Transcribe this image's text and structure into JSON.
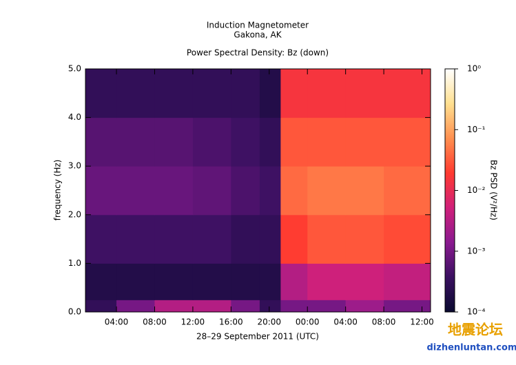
{
  "chart_data": {
    "type": "heatmap",
    "title": "Induction Magnetometer",
    "subtitle": "Gakona, AK",
    "plot_title": "Power Spectral Density: Bz (down)",
    "xlabel": "28–29 September 2011 (UTC)",
    "ylabel": "frequency (Hz)",
    "colorbar_label": "Bz PSD (V²/Hz)",
    "x_bins": [
      0.75,
      4,
      8,
      12,
      16,
      19,
      21.2,
      24,
      28,
      32,
      36.9
    ],
    "y_bins": [
      0,
      0.25,
      1,
      2,
      3,
      4,
      5
    ],
    "z": [
      [
        0.0003,
        0.001,
        0.003,
        0.003,
        0.001,
        0.0003,
        0.001,
        0.001,
        0.002,
        0.001
      ],
      [
        0.0002,
        0.0002,
        0.0002,
        0.0002,
        0.0002,
        0.0002,
        0.003,
        0.005,
        0.005,
        0.004
      ],
      [
        0.0004,
        0.0004,
        0.0004,
        0.0004,
        0.0003,
        0.0003,
        0.02,
        0.03,
        0.03,
        0.025
      ],
      [
        0.0008,
        0.0008,
        0.0008,
        0.0007,
        0.0005,
        0.0004,
        0.04,
        0.05,
        0.05,
        0.04
      ],
      [
        0.0006,
        0.0006,
        0.0006,
        0.0005,
        0.0004,
        0.0003,
        0.03,
        0.03,
        0.03,
        0.03
      ],
      [
        0.0003,
        0.0003,
        0.0003,
        0.0003,
        0.0003,
        0.0002,
        0.015,
        0.015,
        0.015,
        0.015
      ]
    ],
    "xlim": [
      0.75,
      36.9
    ],
    "xticks": [
      {
        "value": 4,
        "label": "04:00"
      },
      {
        "value": 8,
        "label": "08:00"
      },
      {
        "value": 12,
        "label": "12:00"
      },
      {
        "value": 16,
        "label": "16:00"
      },
      {
        "value": 20,
        "label": "20:00"
      },
      {
        "value": 24,
        "label": "00:00"
      },
      {
        "value": 28,
        "label": "04:00"
      },
      {
        "value": 32,
        "label": "08:00"
      },
      {
        "value": 36,
        "label": "12:00"
      }
    ],
    "ylim": [
      0,
      5
    ],
    "yticks": [
      {
        "value": 0,
        "label": "0.0"
      },
      {
        "value": 1,
        "label": "1.0"
      },
      {
        "value": 2,
        "label": "2.0"
      },
      {
        "value": 3,
        "label": "3.0"
      },
      {
        "value": 4,
        "label": "4.0"
      },
      {
        "value": 5,
        "label": "5.0"
      }
    ],
    "clim": [
      0.0001,
      1
    ],
    "clog": true,
    "cticks": [
      {
        "value": 0.0001,
        "label": "10⁻⁴"
      },
      {
        "value": 0.001,
        "label": "10⁻³"
      },
      {
        "value": 0.01,
        "label": "10⁻²"
      },
      {
        "value": 0.1,
        "label": "10⁻¹"
      },
      {
        "value": 1,
        "label": "10⁰"
      }
    ],
    "colormap": [
      "#0a0a30",
      "#3a1060",
      "#8a1a90",
      "#d0207a",
      "#ff3a30",
      "#ff9050",
      "#ffe090",
      "#ffffff"
    ],
    "watermark": [
      "地震论坛",
      "dizhenluntan.com"
    ]
  }
}
